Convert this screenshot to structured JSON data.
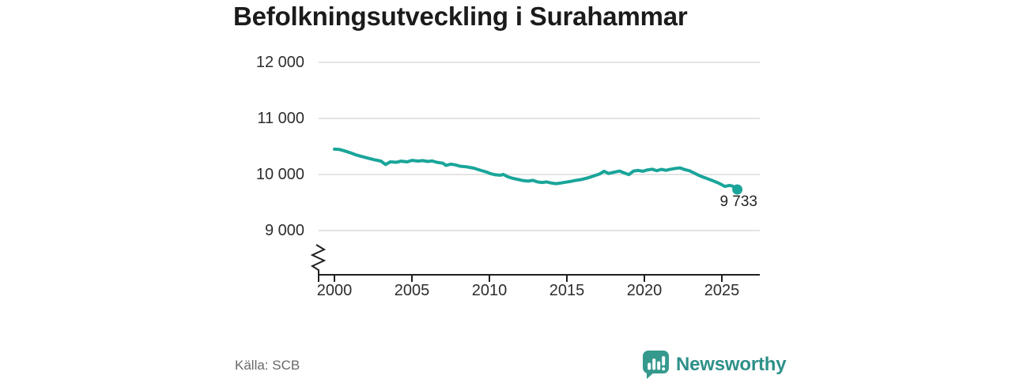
{
  "chart": {
    "title": "Befolkningsutveckling i Surahammar"
  },
  "footer": {
    "source": "Källa: SCB",
    "brand": "Newsworthy"
  },
  "colors": {
    "line": "#1aa59a",
    "grid": "#dcdcdc",
    "axis": "#1f1f1f",
    "text": "#2d2d2d",
    "muted": "#696969",
    "logo": "#35998d",
    "logo_text": "#2e9089"
  },
  "icons": {
    "brand_icon": "newsworthy-speech-bubble-bar-chart"
  },
  "chart_data": {
    "type": "line",
    "title": "Befolkningsutveckling i Surahammar",
    "xlabel": "",
    "ylabel": "",
    "x_range": [
      2000,
      2026
    ],
    "ylim": [
      9000,
      12000
    ],
    "y_axis_break": true,
    "grid": "horizontal",
    "legend": "none",
    "end_label": "9 733",
    "end_value": 9733,
    "y_ticks": [
      {
        "label": "12 000",
        "value": 12000
      },
      {
        "label": "11 000",
        "value": 11000
      },
      {
        "label": "10 000",
        "value": 10000
      },
      {
        "label": "9 000",
        "value": 9000
      }
    ],
    "x_ticks": [
      {
        "label": "2000",
        "value": 2000
      },
      {
        "label": "2005",
        "value": 2005
      },
      {
        "label": "2010",
        "value": 2010
      },
      {
        "label": "2015",
        "value": 2015
      },
      {
        "label": "2020",
        "value": 2020
      },
      {
        "label": "2025",
        "value": 2025
      }
    ],
    "series": [
      {
        "name": "Befolkning",
        "points": [
          [
            2000.0,
            10452
          ],
          [
            2000.3,
            10448
          ],
          [
            2000.6,
            10425
          ],
          [
            2001.0,
            10390
          ],
          [
            2001.4,
            10350
          ],
          [
            2001.8,
            10318
          ],
          [
            2002.2,
            10290
          ],
          [
            2002.6,
            10262
          ],
          [
            2003.0,
            10240
          ],
          [
            2003.3,
            10178
          ],
          [
            2003.6,
            10225
          ],
          [
            2004.0,
            10218
          ],
          [
            2004.3,
            10238
          ],
          [
            2004.7,
            10225
          ],
          [
            2005.0,
            10252
          ],
          [
            2005.4,
            10240
          ],
          [
            2005.7,
            10248
          ],
          [
            2006.0,
            10232
          ],
          [
            2006.3,
            10242
          ],
          [
            2006.6,
            10218
          ],
          [
            2007.0,
            10202
          ],
          [
            2007.2,
            10162
          ],
          [
            2007.5,
            10185
          ],
          [
            2007.8,
            10172
          ],
          [
            2008.1,
            10148
          ],
          [
            2008.5,
            10138
          ],
          [
            2009.0,
            10112
          ],
          [
            2009.4,
            10078
          ],
          [
            2009.8,
            10045
          ],
          [
            2010.1,
            10012
          ],
          [
            2010.4,
            9995
          ],
          [
            2010.7,
            9988
          ],
          [
            2010.9,
            10002
          ],
          [
            2011.2,
            9958
          ],
          [
            2011.5,
            9932
          ],
          [
            2011.9,
            9908
          ],
          [
            2012.2,
            9890
          ],
          [
            2012.5,
            9882
          ],
          [
            2012.8,
            9896
          ],
          [
            2013.1,
            9868
          ],
          [
            2013.4,
            9858
          ],
          [
            2013.7,
            9868
          ],
          [
            2014.0,
            9848
          ],
          [
            2014.3,
            9836
          ],
          [
            2014.6,
            9848
          ],
          [
            2014.9,
            9862
          ],
          [
            2015.2,
            9875
          ],
          [
            2015.5,
            9892
          ],
          [
            2015.9,
            9908
          ],
          [
            2016.2,
            9928
          ],
          [
            2016.5,
            9952
          ],
          [
            2016.8,
            9980
          ],
          [
            2017.1,
            10008
          ],
          [
            2017.4,
            10058
          ],
          [
            2017.7,
            10018
          ],
          [
            2018.0,
            10038
          ],
          [
            2018.4,
            10062
          ],
          [
            2018.7,
            10028
          ],
          [
            2019.0,
            9998
          ],
          [
            2019.3,
            10062
          ],
          [
            2019.6,
            10072
          ],
          [
            2019.9,
            10058
          ],
          [
            2020.2,
            10082
          ],
          [
            2020.5,
            10095
          ],
          [
            2020.8,
            10068
          ],
          [
            2021.1,
            10092
          ],
          [
            2021.4,
            10075
          ],
          [
            2021.7,
            10095
          ],
          [
            2022.0,
            10108
          ],
          [
            2022.3,
            10118
          ],
          [
            2022.6,
            10088
          ],
          [
            2022.9,
            10068
          ],
          [
            2023.2,
            10028
          ],
          [
            2023.5,
            9988
          ],
          [
            2023.8,
            9952
          ],
          [
            2024.1,
            9922
          ],
          [
            2024.4,
            9892
          ],
          [
            2024.7,
            9858
          ],
          [
            2024.9,
            9832
          ],
          [
            2025.2,
            9788
          ],
          [
            2025.5,
            9806
          ],
          [
            2025.7,
            9792
          ],
          [
            2026.0,
            9733
          ]
        ]
      }
    ]
  }
}
